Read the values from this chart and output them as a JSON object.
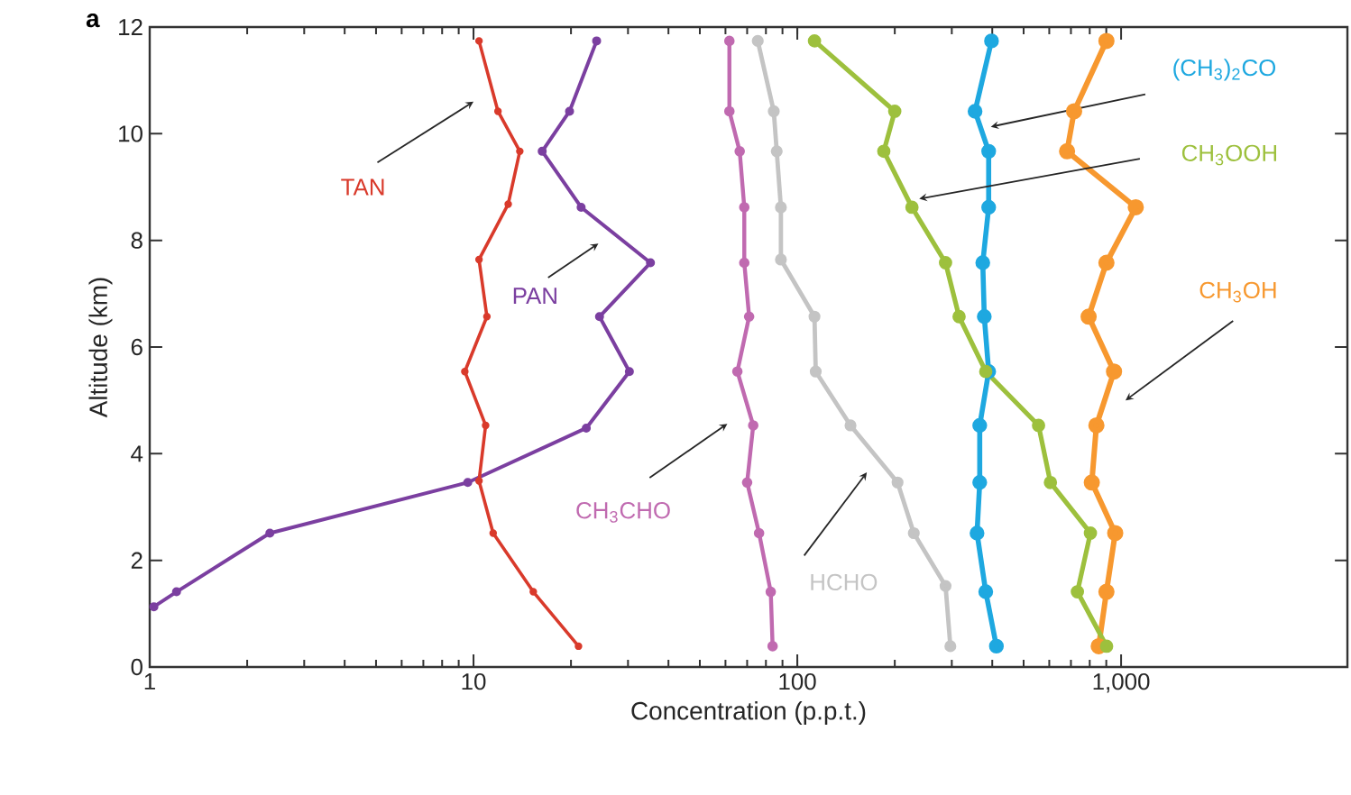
{
  "chart_data": {
    "type": "line",
    "xlabel": "Concentration (p.p.t.)",
    "ylabel": "Altitude (km)",
    "annotations": [
      "a"
    ],
    "log": "x",
    "xlim": [
      1,
      5000
    ],
    "ylim": [
      0,
      12
    ],
    "xticks": [
      1,
      10,
      100,
      {
        "value": 1000,
        "label": "1,000"
      }
    ],
    "yticks": [
      0,
      2,
      4,
      6,
      8,
      10,
      12
    ],
    "grid": false,
    "legend": false,
    "marker": "circle",
    "line_style": "solid",
    "series": [
      {
        "name": "TAN",
        "color": "#d93a2b",
        "x": [
          10.4,
          11.9,
          13.9,
          12.8,
          10.4,
          11.0,
          9.4,
          10.9,
          10.4,
          11.5,
          15.3,
          21.1
        ],
        "values": [
          11.74,
          10.42,
          9.67,
          8.68,
          7.64,
          6.57,
          5.54,
          4.53,
          3.49,
          2.51,
          1.41,
          0.39
        ]
      },
      {
        "name": "PAN",
        "color": "#7b3fa0",
        "x": [
          24,
          19.8,
          16.3,
          21.5,
          35.2,
          24.5,
          30.3,
          22.3,
          9.6,
          2.35,
          1.21,
          1.03
        ],
        "values": [
          11.74,
          10.42,
          9.67,
          8.62,
          7.58,
          6.57,
          5.54,
          4.48,
          3.46,
          2.51,
          1.41,
          1.13
        ]
      },
      {
        "name": "CH$_{3}$CHO",
        "color": "#c06ab0",
        "x": [
          61.7,
          61.7,
          66.4,
          68.6,
          68.6,
          71,
          65.3,
          73.1,
          70,
          76.2,
          82.8,
          83.9
        ],
        "values": [
          11.74,
          10.42,
          9.67,
          8.62,
          7.58,
          6.57,
          5.54,
          4.53,
          3.46,
          2.51,
          1.41,
          0.39
        ]
      },
      {
        "name": "HCHO",
        "color": "#c4c4c4",
        "x": [
          75.5,
          84.6,
          86.4,
          89,
          89,
          113,
          114,
          146,
          204,
          229,
          287,
          297
        ],
        "values": [
          11.74,
          10.42,
          9.67,
          8.62,
          7.64,
          6.57,
          5.54,
          4.53,
          3.46,
          2.51,
          1.52,
          0.39
        ]
      },
      {
        "name": "CH$_{3}$OOH",
        "color": "#9dc03d",
        "x": [
          113,
          200,
          185,
          226,
          287,
          316,
          382,
          556,
          605,
          804,
          733,
          902
        ],
        "values": [
          11.74,
          10.42,
          9.67,
          8.62,
          7.58,
          6.57,
          5.54,
          4.53,
          3.46,
          2.51,
          1.41,
          0.39
        ]
      },
      {
        "name": "(CH$_{3}$)$_{2}$CO",
        "color": "#1ea8e0",
        "x": [
          398,
          354,
          390,
          390,
          374,
          378,
          390,
          366,
          366,
          359,
          382,
          412
        ],
        "values": [
          11.74,
          10.42,
          9.67,
          8.62,
          7.58,
          6.57,
          5.54,
          4.53,
          3.46,
          2.51,
          1.41,
          0.39
        ]
      },
      {
        "name": "CH$_{3}$OH",
        "color": "#f7982f",
        "x": [
          901,
          716,
          681,
          1110,
          901,
          794,
          951,
          839,
          812,
          959,
          901,
          853
        ],
        "values": [
          11.74,
          10.42,
          9.67,
          8.62,
          7.58,
          6.57,
          5.54,
          4.53,
          3.46,
          2.51,
          1.41,
          0.39
        ]
      }
    ]
  }
}
